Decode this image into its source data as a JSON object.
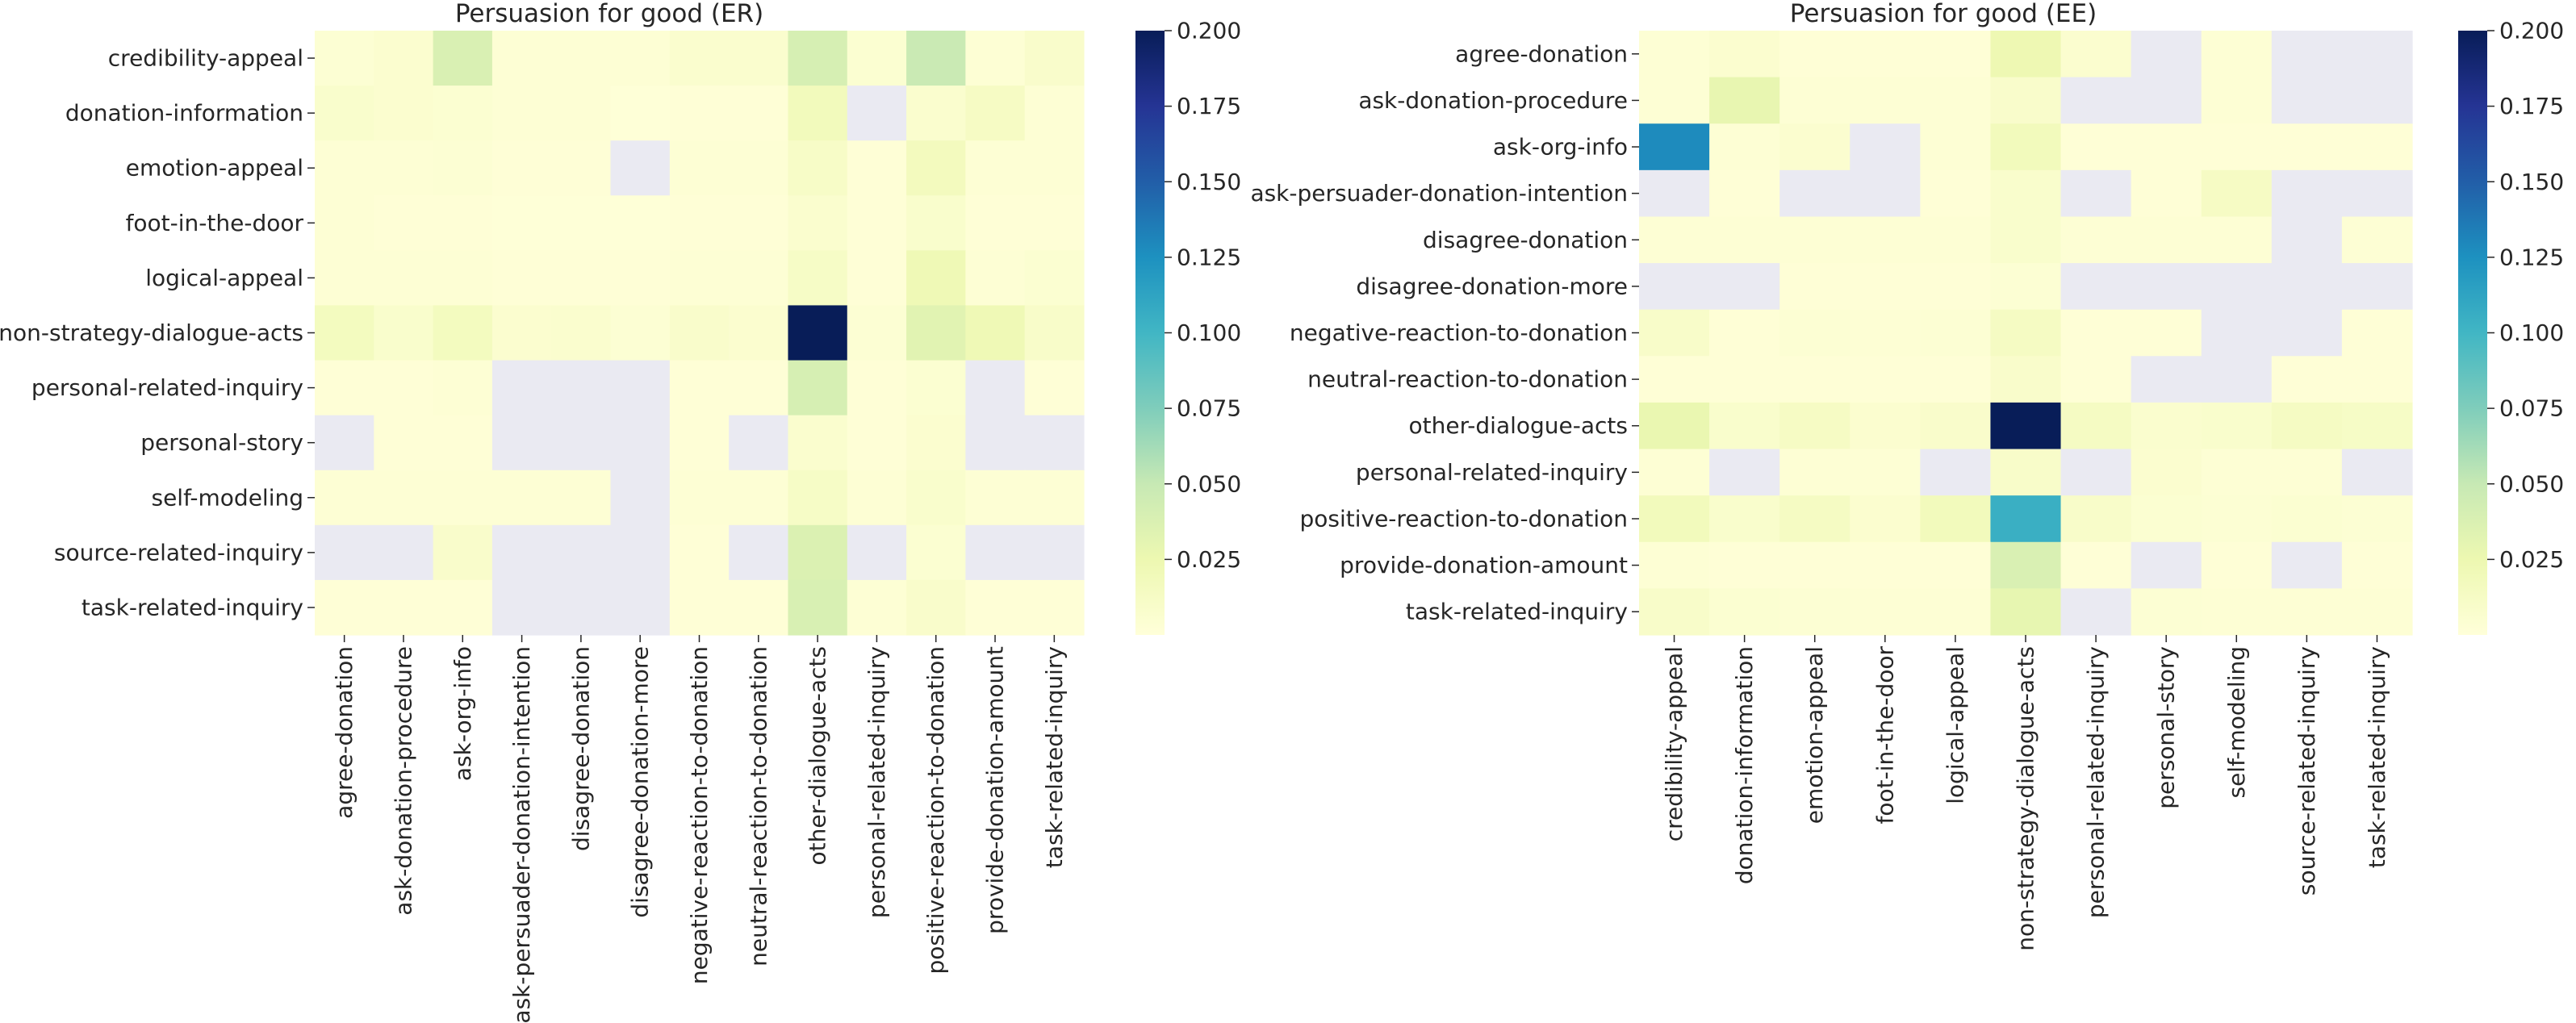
{
  "chart_data": [
    {
      "type": "heatmap",
      "title": "Persuasion for good (ER)",
      "rows": [
        "credibility-appeal",
        "donation-information",
        "emotion-appeal",
        "foot-in-the-door",
        "logical-appeal",
        "non-strategy-dialogue-acts",
        "personal-related-inquiry",
        "personal-story",
        "self-modeling",
        "source-related-inquiry",
        "task-related-inquiry"
      ],
      "columns": [
        "agree-donation",
        "ask-donation-procedure",
        "ask-org-info",
        "ask-persuader-donation-intention",
        "disagree-donation",
        "disagree-donation-more",
        "negative-reaction-to-donation",
        "neutral-reaction-to-donation",
        "other-dialogue-acts",
        "personal-related-inquiry",
        "positive-reaction-to-donation",
        "provide-donation-amount",
        "task-related-inquiry"
      ],
      "values": [
        [
          0.004,
          0.006,
          0.038,
          0.003,
          0.003,
          0.003,
          0.007,
          0.007,
          0.04,
          0.005,
          0.048,
          0.003,
          0.009
        ],
        [
          0.008,
          0.006,
          0.005,
          0.003,
          0.003,
          0.001,
          0.002,
          0.002,
          0.018,
          null,
          0.007,
          0.013,
          0.003
        ],
        [
          0.003,
          0.003,
          0.004,
          0.002,
          0.002,
          null,
          0.003,
          0.003,
          0.011,
          0.002,
          0.017,
          0.003,
          0.003
        ],
        [
          0.003,
          0.002,
          0.002,
          0.001,
          0.001,
          0.001,
          0.002,
          0.002,
          0.007,
          0.002,
          0.008,
          0.002,
          0.002
        ],
        [
          0.003,
          0.003,
          0.003,
          0.002,
          0.002,
          0.002,
          0.003,
          0.003,
          0.012,
          0.002,
          0.022,
          0.003,
          0.005
        ],
        [
          0.016,
          0.008,
          0.016,
          0.006,
          0.007,
          0.004,
          0.009,
          0.006,
          0.2,
          0.004,
          0.033,
          0.022,
          0.01
        ],
        [
          0.002,
          0.002,
          0.003,
          null,
          null,
          null,
          0.002,
          0.002,
          0.04,
          0.002,
          0.005,
          null,
          0.002
        ],
        [
          null,
          0.002,
          0.002,
          null,
          null,
          null,
          0.002,
          null,
          0.007,
          0.002,
          0.006,
          null,
          null
        ],
        [
          0.003,
          0.003,
          0.003,
          0.003,
          0.003,
          null,
          0.003,
          0.003,
          0.012,
          0.003,
          0.008,
          0.003,
          0.003
        ],
        [
          null,
          null,
          0.009,
          null,
          null,
          null,
          0.002,
          null,
          0.037,
          null,
          0.005,
          null,
          null
        ],
        [
          0.002,
          0.002,
          0.002,
          null,
          null,
          null,
          0.002,
          0.002,
          0.039,
          0.003,
          0.009,
          0.002,
          0.002
        ]
      ],
      "colorbar": {
        "min": 0,
        "max": 0.2,
        "ticks": [
          "0.025",
          "0.050",
          "0.075",
          "0.100",
          "0.125",
          "0.150",
          "0.175",
          "0.200"
        ],
        "colormap": "YlGnBu"
      },
      "missing_color": "#eaeaf2"
    },
    {
      "type": "heatmap",
      "title": "Persuasion for good (EE)",
      "rows": [
        "agree-donation",
        "ask-donation-procedure",
        "ask-org-info",
        "ask-persuader-donation-intention",
        "disagree-donation",
        "disagree-donation-more",
        "negative-reaction-to-donation",
        "neutral-reaction-to-donation",
        "other-dialogue-acts",
        "personal-related-inquiry",
        "positive-reaction-to-donation",
        "provide-donation-amount",
        "task-related-inquiry"
      ],
      "columns": [
        "credibility-appeal",
        "donation-information",
        "emotion-appeal",
        "foot-in-the-door",
        "logical-appeal",
        "non-strategy-dialogue-acts",
        "personal-related-inquiry",
        "personal-story",
        "self-modeling",
        "source-related-inquiry",
        "task-related-inquiry"
      ],
      "values": [
        [
          0.003,
          0.006,
          0.002,
          0.002,
          0.002,
          0.024,
          0.006,
          null,
          0.003,
          null,
          null
        ],
        [
          0.003,
          0.028,
          0.003,
          0.003,
          0.003,
          0.009,
          null,
          null,
          0.003,
          null,
          null
        ],
        [
          0.128,
          0.003,
          0.006,
          null,
          0.003,
          0.018,
          0.002,
          0.002,
          0.002,
          0.002,
          0.002
        ],
        [
          null,
          0.002,
          null,
          null,
          0.002,
          0.008,
          null,
          0.002,
          0.013,
          null,
          null
        ],
        [
          0.003,
          0.003,
          0.003,
          0.003,
          0.003,
          0.008,
          0.003,
          0.003,
          0.003,
          null,
          0.003
        ],
        [
          null,
          null,
          0.002,
          0.002,
          0.002,
          0.004,
          null,
          null,
          null,
          null,
          null
        ],
        [
          0.01,
          0.002,
          0.004,
          0.003,
          0.004,
          0.014,
          0.002,
          0.002,
          null,
          null,
          0.002
        ],
        [
          0.002,
          0.002,
          0.002,
          0.002,
          0.002,
          0.009,
          0.002,
          null,
          null,
          0.002,
          0.002
        ],
        [
          0.027,
          0.008,
          0.013,
          0.006,
          0.009,
          0.2,
          0.014,
          0.007,
          0.008,
          0.014,
          0.012
        ],
        [
          0.003,
          null,
          0.003,
          0.003,
          null,
          0.01,
          null,
          0.006,
          0.003,
          0.003,
          null
        ],
        [
          0.018,
          0.008,
          0.014,
          0.006,
          0.018,
          0.105,
          0.01,
          0.005,
          0.004,
          0.005,
          0.004
        ],
        [
          0.003,
          0.002,
          0.002,
          0.002,
          0.002,
          0.038,
          0.002,
          null,
          0.002,
          null,
          0.002
        ],
        [
          0.01,
          0.005,
          0.004,
          0.003,
          0.003,
          0.029,
          null,
          0.004,
          0.003,
          0.003,
          0.003
        ]
      ],
      "colorbar": {
        "min": 0,
        "max": 0.2,
        "ticks": [
          "0.025",
          "0.050",
          "0.075",
          "0.100",
          "0.125",
          "0.150",
          "0.175",
          "0.200"
        ],
        "colormap": "YlGnBu"
      },
      "missing_color": "#eaeaf2"
    }
  ]
}
